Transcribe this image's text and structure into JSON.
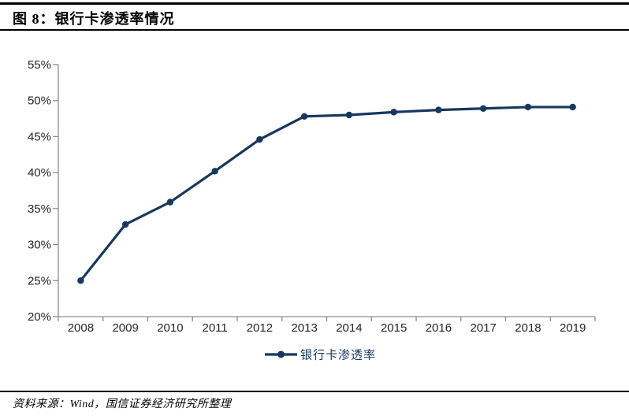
{
  "header": {
    "title": "图 8：银行卡渗透率情况"
  },
  "footer": {
    "source": "资料来源：Wind，国信证券经济研究所整理"
  },
  "chart_data": {
    "type": "line",
    "title": "银行卡渗透率情况",
    "categories": [
      "2008",
      "2009",
      "2010",
      "2011",
      "2012",
      "2013",
      "2014",
      "2015",
      "2016",
      "2017",
      "2018",
      "2019"
    ],
    "series": [
      {
        "name": "银行卡渗透率",
        "values": [
          25.0,
          32.8,
          35.9,
          40.2,
          44.6,
          47.8,
          48.0,
          48.4,
          48.7,
          48.9,
          49.1,
          49.1
        ],
        "color": "#17375e",
        "marker": "circle"
      }
    ],
    "xlabel": "",
    "ylabel": "",
    "ylim": [
      20,
      55
    ],
    "yticks": [
      20,
      25,
      30,
      35,
      40,
      45,
      50,
      55
    ],
    "ytick_labels": [
      "20%",
      "25%",
      "30%",
      "35%",
      "40%",
      "45%",
      "50%",
      "55%"
    ],
    "grid": false,
    "legend_position": "bottom-center",
    "legend_label": "银行卡渗透率",
    "colors": {
      "series": "#17375e",
      "axis": "#8c8c8c",
      "tick_labels": "#262626",
      "legend_text": "#17375e",
      "rules": "#000000",
      "background": "#ffffff"
    }
  }
}
